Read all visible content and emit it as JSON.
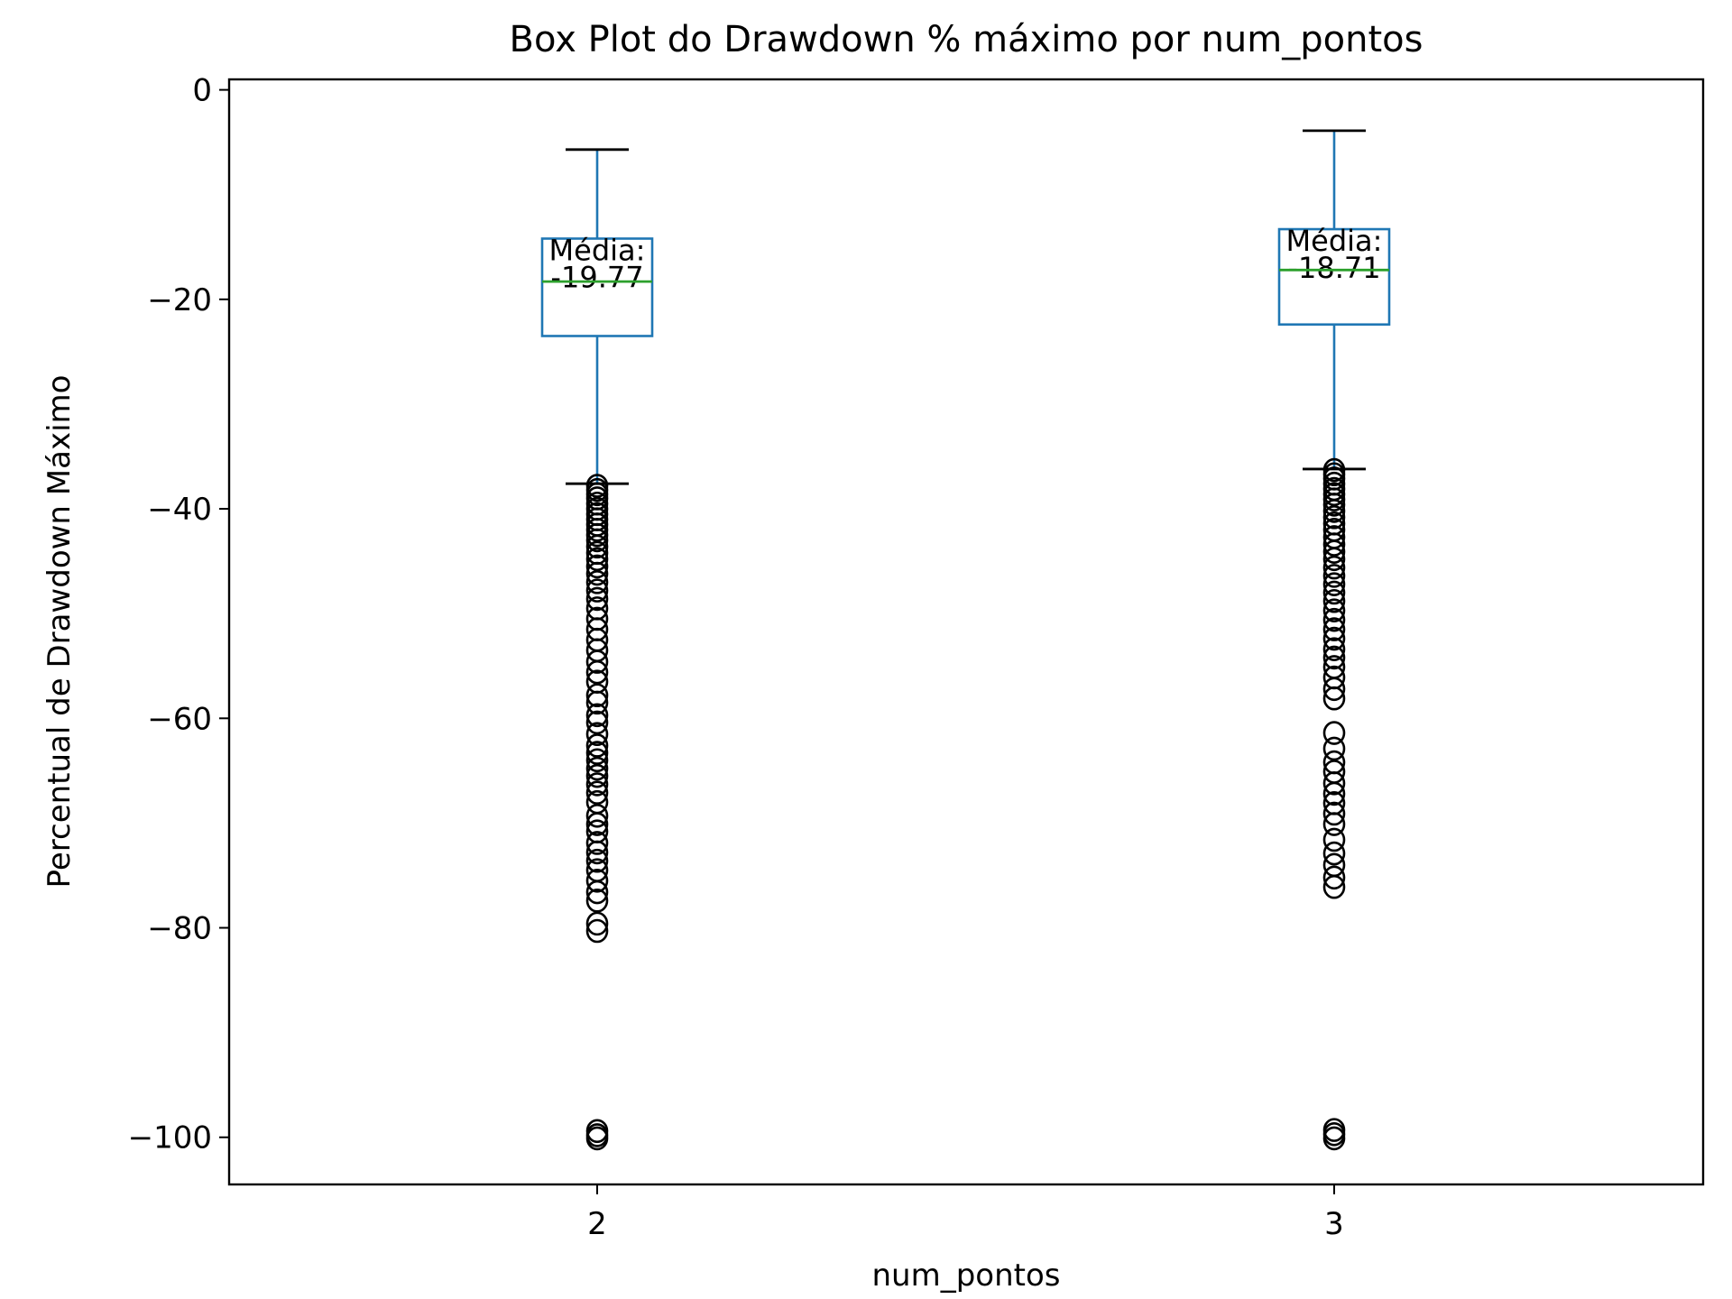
{
  "chart_data": {
    "type": "box",
    "title": "Box Plot do Drawdown % máximo por num_pontos",
    "xlabel": "num_pontos",
    "ylabel": "Percentual de Drawdown Máximo",
    "ylim": [
      -104.5,
      1
    ],
    "yticks": [
      0,
      -20,
      -40,
      -60,
      -80,
      -100
    ],
    "ytick_labels": [
      "0",
      "−20",
      "−40",
      "−60",
      "−80",
      "−100"
    ],
    "grid": false,
    "colors": {
      "box": "#1f77b4",
      "median": "#2ca02c",
      "cap": "#000000",
      "flier": "#000000"
    },
    "categories": [
      "2",
      "3"
    ],
    "boxes": [
      {
        "category": "2",
        "whisker_high": -5.7,
        "q3": -14.2,
        "median": -18.3,
        "q1": -23.5,
        "whisker_low": -37.6,
        "mean_label": [
          "Média:",
          "-19.77"
        ],
        "outliers": [
          -37.8,
          -38.2,
          -38.6,
          -39,
          -39.5,
          -40,
          -40.5,
          -41,
          -41.5,
          -42,
          -42.5,
          -43,
          -43.6,
          -44.2,
          -44.8,
          -45.5,
          -46.2,
          -47,
          -47.8,
          -48.6,
          -49.5,
          -50.5,
          -51.5,
          -52.5,
          -53.5,
          -54.6,
          -55.6,
          -56.5,
          -57.8,
          -58.5,
          -59.7,
          -60.4,
          -61.5,
          -62.6,
          -63.3,
          -64,
          -64.8,
          -65.5,
          -66.3,
          -67.1,
          -68,
          -69.3,
          -70.1,
          -70.8,
          -71.9,
          -72.8,
          -73.6,
          -74.5,
          -75.5,
          -76.6,
          -77.4,
          -79.6,
          -80.3,
          -99.4,
          -99.8,
          -100.1
        ]
      },
      {
        "category": "3",
        "whisker_high": -3.9,
        "q3": -13.3,
        "median": -17.2,
        "q1": -22.4,
        "whisker_low": -36.2,
        "mean_label": [
          "Média:",
          "-18.71"
        ],
        "outliers": [
          -36.3,
          -36.7,
          -37.1,
          -37.6,
          -38.1,
          -38.6,
          -39.1,
          -39.6,
          -40.2,
          -40.8,
          -41.4,
          -42,
          -42.7,
          -43.4,
          -44.1,
          -44.8,
          -45.6,
          -46.4,
          -47.2,
          -48,
          -48.8,
          -49.7,
          -50.6,
          -51.5,
          -52.4,
          -53.4,
          -54.2,
          -55.1,
          -56.1,
          -57.2,
          -58.1,
          -61.4,
          -62.9,
          -64.2,
          -65.1,
          -66.2,
          -67.2,
          -68.1,
          -69.1,
          -70.1,
          -71.6,
          -72.9,
          -74,
          -75.2,
          -76.1,
          -99.3,
          -99.7,
          -100.1
        ]
      }
    ]
  }
}
